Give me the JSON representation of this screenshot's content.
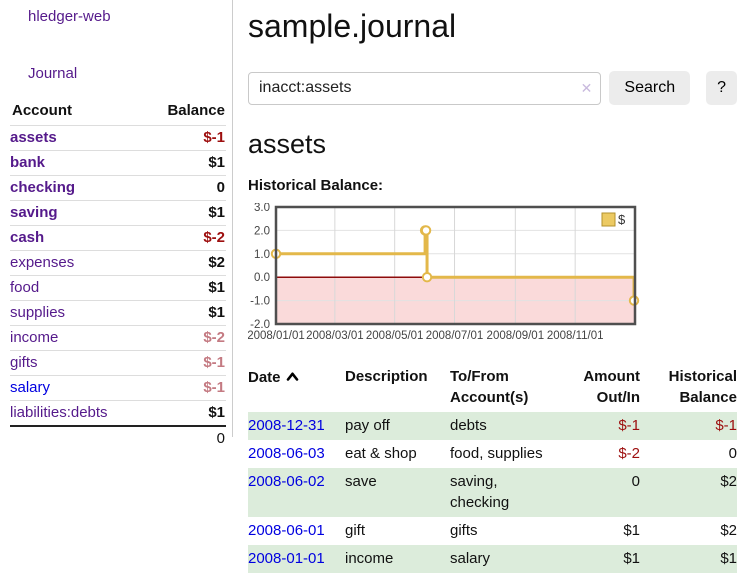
{
  "sidebar": {
    "brand": "hledger-web",
    "nav_journal": "Journal",
    "accounts_table": {
      "headers": [
        "Account",
        "Balance"
      ],
      "rows": [
        {
          "account": "assets",
          "balance": "$-1",
          "indent": 1,
          "bold": true,
          "neg": "strong"
        },
        {
          "account": "bank",
          "balance": "$1",
          "indent": 2,
          "bold": true,
          "neg": ""
        },
        {
          "account": "checking",
          "balance": "0",
          "indent": 3,
          "bold": true,
          "neg": ""
        },
        {
          "account": "saving",
          "balance": "$1",
          "indent": 3,
          "bold": true,
          "neg": ""
        },
        {
          "account": "cash",
          "balance": "$-2",
          "indent": 2,
          "bold": true,
          "neg": "strong"
        },
        {
          "account": "expenses",
          "balance": "$2",
          "indent": 1,
          "bold": false,
          "neg": ""
        },
        {
          "account": "food",
          "balance": "$1",
          "indent": 2,
          "bold": false,
          "neg": ""
        },
        {
          "account": "supplies",
          "balance": "$1",
          "indent": 2,
          "bold": false,
          "neg": ""
        },
        {
          "account": "income",
          "balance": "$-2",
          "indent": 1,
          "bold": false,
          "neg": "muted"
        },
        {
          "account": "gifts",
          "balance": "$-1",
          "indent": 2,
          "bold": false,
          "neg": "muted"
        },
        {
          "account": "salary",
          "balance": "$-1",
          "indent": 2,
          "bold": false,
          "neg": "muted",
          "unvisited": true
        },
        {
          "account": "liabilities:debts",
          "balance": "$1",
          "indent": 1,
          "bold": false,
          "neg": ""
        }
      ],
      "total": "0"
    }
  },
  "main": {
    "title": "sample.journal",
    "search": {
      "value": "inacct:assets",
      "clear_icon": "✕",
      "search_label": "Search",
      "help_label": "?"
    },
    "account_heading": "assets",
    "chart_label": "Historical Balance:"
  },
  "chart_data": {
    "type": "line",
    "step": true,
    "title": "Historical Balance:",
    "series": [
      {
        "name": "$",
        "points": [
          [
            "2008-01-01",
            1
          ],
          [
            "2008-06-01",
            2
          ],
          [
            "2008-06-02",
            2
          ],
          [
            "2008-06-03",
            0
          ],
          [
            "2008-12-31",
            -1
          ]
        ]
      }
    ],
    "x_range": [
      "2008-01-01",
      "2009-01-01"
    ],
    "x_tick_labels": [
      "2008/01/01",
      "2008/03/01",
      "2008/05/01",
      "2008/07/01",
      "2008/09/01",
      "2008/11/01"
    ],
    "y_ticks": [
      -2,
      -1,
      0,
      1,
      2,
      3
    ],
    "ylim": [
      -2,
      3
    ],
    "grid": true,
    "legend_position": "top-right",
    "colors": {
      "series": "#e3b84a",
      "marker_fill": "#ffffff",
      "negative_region": "#fadada",
      "zero_line": "#8e0b0b",
      "border": "#4f4f4f",
      "grid_h": "#e2e2e2",
      "grid_v": "#d8d8d8",
      "legend_swatch": "#ecca63",
      "legend_swatch_border": "#b3922e"
    }
  },
  "register": {
    "headers": [
      "Date",
      "Description",
      "To/From Account(s)",
      "Amount Out/In",
      "Historical Balance"
    ],
    "rows": [
      {
        "date": "2008-12-31",
        "description": "pay off",
        "accounts": "debts",
        "amount": "$-1",
        "balance": "$-1",
        "amount_neg": true,
        "balance_neg": true
      },
      {
        "date": "2008-06-03",
        "description": "eat & shop",
        "accounts": "food, supplies",
        "amount": "$-2",
        "balance": "0",
        "amount_neg": true,
        "balance_neg": false
      },
      {
        "date": "2008-06-02",
        "description": "save",
        "accounts": "saving, checking",
        "amount": "0",
        "balance": "$2",
        "amount_neg": false,
        "balance_neg": false
      },
      {
        "date": "2008-06-01",
        "description": "gift",
        "accounts": "gifts",
        "amount": "$1",
        "balance": "$2",
        "amount_neg": false,
        "balance_neg": false
      },
      {
        "date": "2008-01-01",
        "description": "income",
        "accounts": "salary",
        "amount": "$1",
        "balance": "$1",
        "amount_neg": false,
        "balance_neg": false
      }
    ]
  }
}
